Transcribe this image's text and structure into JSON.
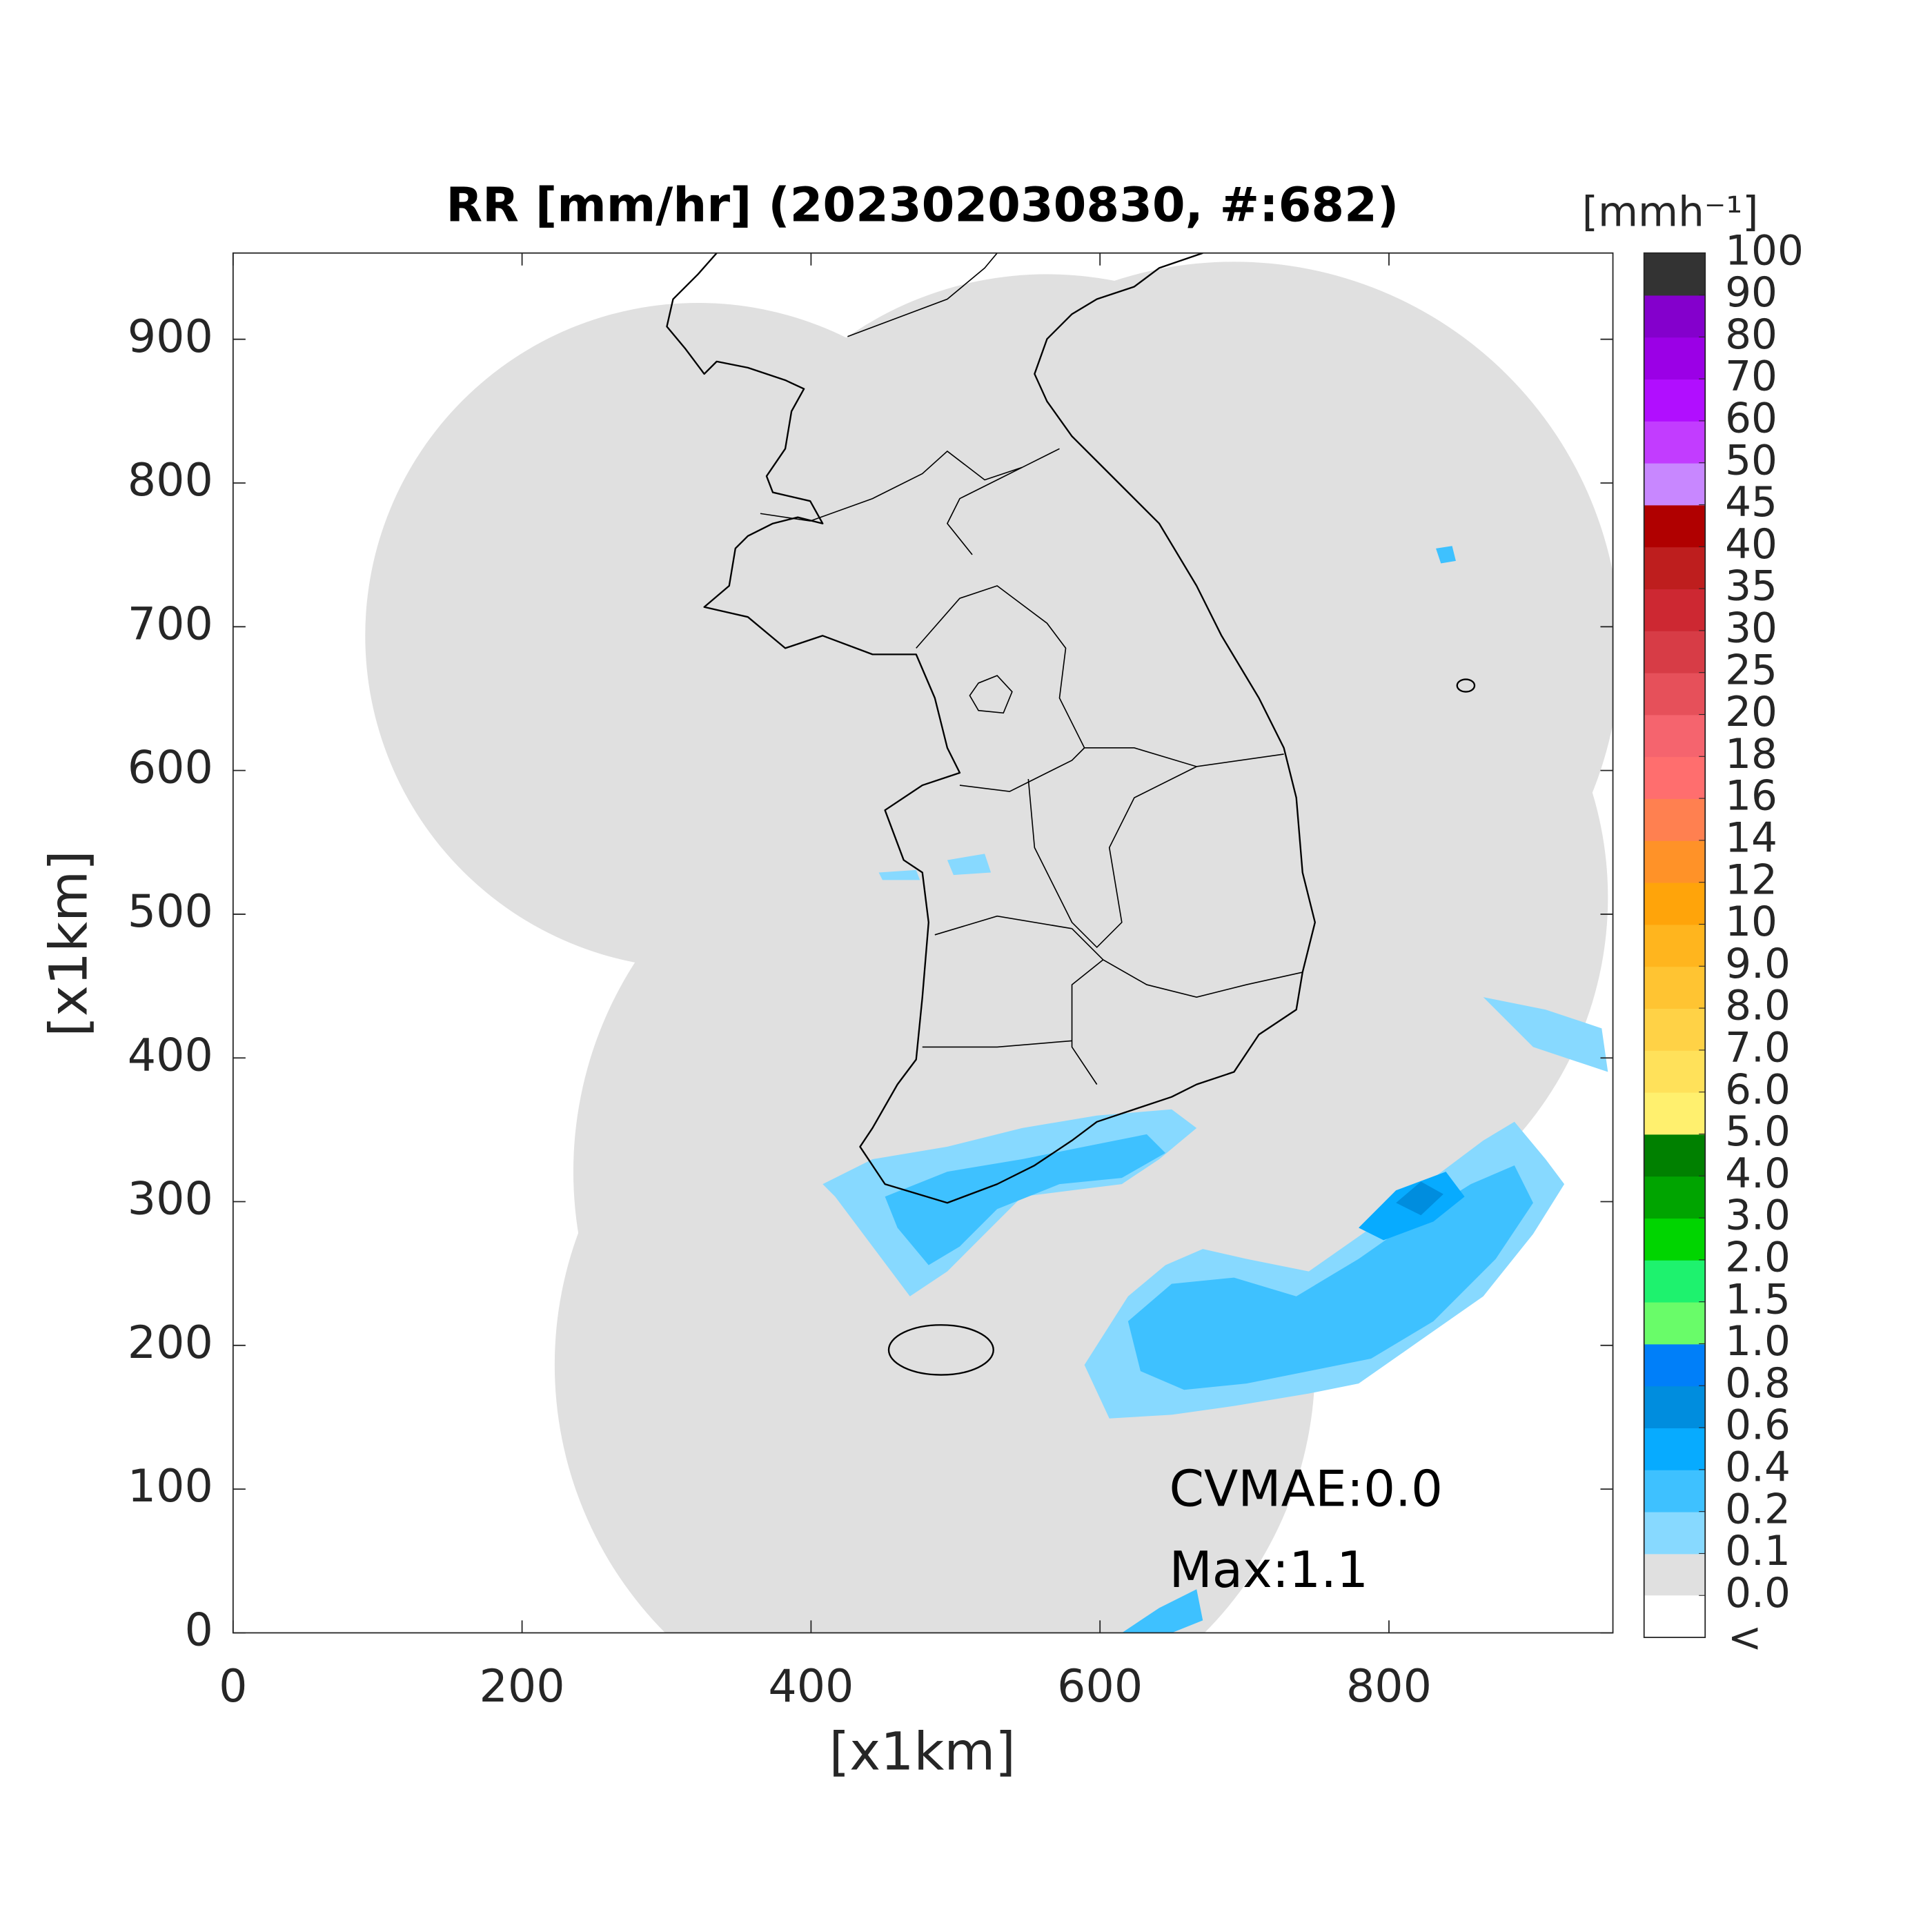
{
  "chart_data": {
    "type": "map",
    "title": "RR [mm/hr] (202302030830, #:682)",
    "x_label": "[x1km]",
    "y_label": "[x1km]",
    "xlim": [
      0,
      955
    ],
    "ylim": [
      0,
      960
    ],
    "xticks": [
      0,
      200,
      400,
      600,
      800
    ],
    "yticks": [
      0,
      100,
      200,
      300,
      400,
      500,
      600,
      700,
      800,
      900
    ],
    "annotations": [
      "CVMAE:0.0",
      "Max:1.1"
    ],
    "colorbar": {
      "label": "[mmh⁻¹]",
      "under_label": "<",
      "under_color": "#ffffff",
      "ticks": [
        {
          "value": 0,
          "label": "0.0"
        },
        0.1,
        0.2,
        0.4,
        0.6,
        0.8,
        {
          "value": 1,
          "label": "1.0"
        },
        1.5,
        {
          "value": 2,
          "label": "2.0"
        },
        {
          "value": 3,
          "label": "3.0"
        },
        {
          "value": 4,
          "label": "4.0"
        },
        {
          "value": 5,
          "label": "5.0"
        },
        {
          "value": 6,
          "label": "6.0"
        },
        {
          "value": 7,
          "label": "7.0"
        },
        {
          "value": 8,
          "label": "8.0"
        },
        {
          "value": 9,
          "label": "9.0"
        },
        10,
        12,
        14,
        16,
        18,
        20,
        25,
        30,
        35,
        40,
        45,
        50,
        60,
        70,
        80,
        90,
        100
      ],
      "colors": [
        "#e0e0e0",
        "#87d9ff",
        "#3ec1ff",
        "#07abff",
        "#008dde",
        "#007ff9",
        "#69fc69",
        "#1ef26e",
        "#00d500",
        "#00a400",
        "#008000",
        "#fff06e",
        "#ffe15a",
        "#ffd246",
        "#ffc432",
        "#ffb51e",
        "#ffa40a",
        "#ff9228",
        "#ff8050",
        "#ff6e6e",
        "#f5646e",
        "#e6505a",
        "#d73c46",
        "#cd2832",
        "#be1e1e",
        "#b00000",
        "#c887ff",
        "#c23cff",
        "#b10eff",
        "#9b00e6",
        "#8400cc",
        "#333333"
      ]
    }
  }
}
